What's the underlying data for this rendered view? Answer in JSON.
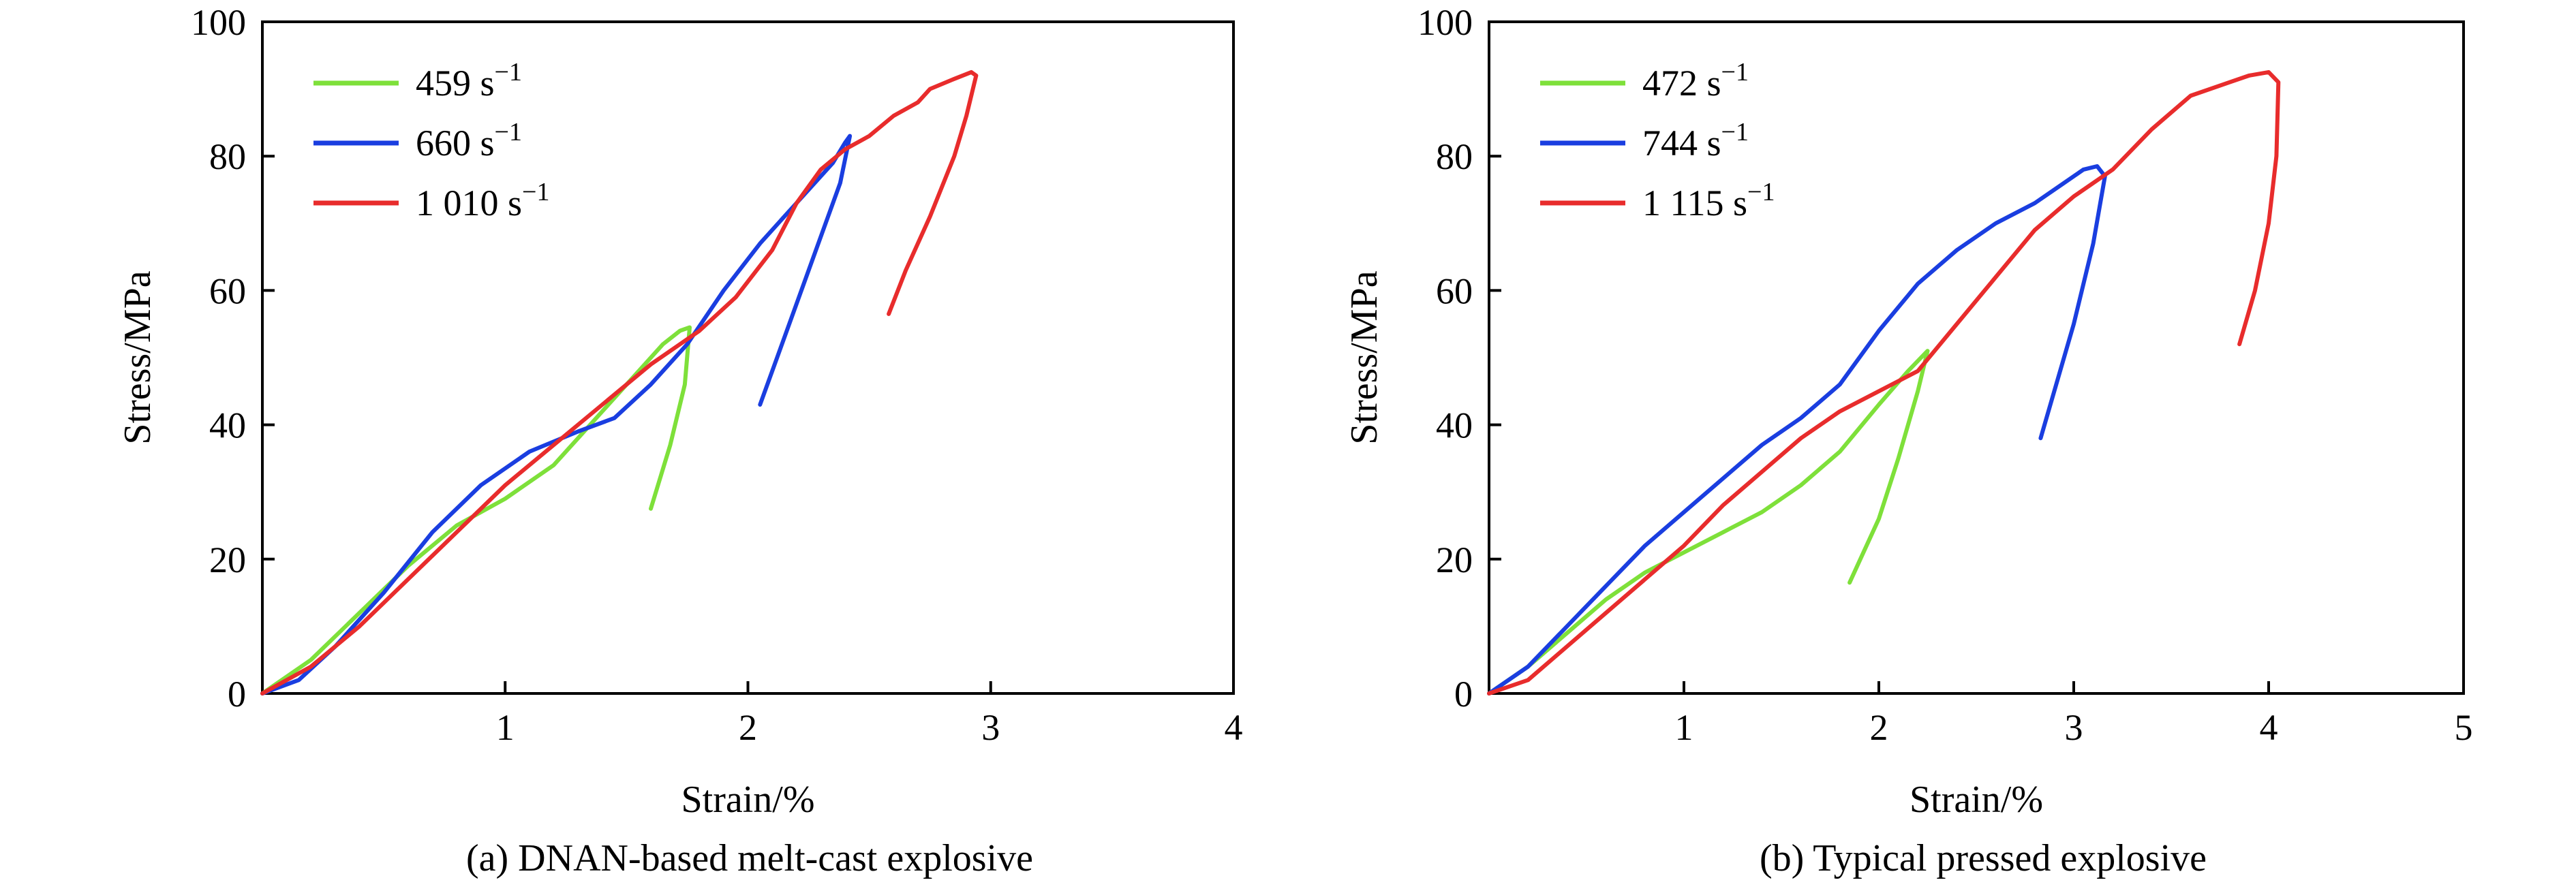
{
  "chart_data": [
    {
      "type": "line",
      "caption": "(a) DNAN-based melt-cast explosive",
      "xlabel": "Strain/%",
      "ylabel": "Stress/MPa",
      "xlim": [
        0,
        4
      ],
      "ylim": [
        0,
        100
      ],
      "xticks": [
        1,
        2,
        3,
        4
      ],
      "yticks": [
        0,
        20,
        40,
        60,
        80,
        100
      ],
      "grid": false,
      "legend_position": "top-left",
      "series": [
        {
          "name": "459 s",
          "name_sup": "−1",
          "color": "#7ee03a",
          "points": [
            [
              0,
              0
            ],
            [
              0.2,
              5
            ],
            [
              0.4,
              12
            ],
            [
              0.6,
              19
            ],
            [
              0.8,
              25
            ],
            [
              1.0,
              29
            ],
            [
              1.2,
              34
            ],
            [
              1.4,
              42
            ],
            [
              1.55,
              48
            ],
            [
              1.65,
              52
            ],
            [
              1.72,
              54
            ],
            [
              1.76,
              54.5
            ],
            [
              1.74,
              46
            ],
            [
              1.68,
              37
            ],
            [
              1.6,
              27.5
            ]
          ]
        },
        {
          "name": "660 s",
          "name_sup": "−1",
          "color": "#1a3ee0",
          "points": [
            [
              0,
              0
            ],
            [
              0.15,
              2
            ],
            [
              0.3,
              7
            ],
            [
              0.5,
              15
            ],
            [
              0.7,
              24
            ],
            [
              0.9,
              31
            ],
            [
              1.1,
              36
            ],
            [
              1.3,
              39
            ],
            [
              1.45,
              41
            ],
            [
              1.6,
              46
            ],
            [
              1.75,
              52
            ],
            [
              1.9,
              60
            ],
            [
              2.05,
              67
            ],
            [
              2.15,
              71
            ],
            [
              2.25,
              75
            ],
            [
              2.35,
              79
            ],
            [
              2.4,
              82
            ],
            [
              2.42,
              83
            ],
            [
              2.38,
              76
            ],
            [
              2.3,
              68
            ],
            [
              2.2,
              58
            ],
            [
              2.12,
              50
            ],
            [
              2.05,
              43
            ]
          ]
        },
        {
          "name": "1 010 s",
          "name_sup": "−1",
          "color": "#e82c2c",
          "points": [
            [
              0,
              0
            ],
            [
              0.2,
              4
            ],
            [
              0.4,
              10
            ],
            [
              0.6,
              17
            ],
            [
              0.8,
              24
            ],
            [
              1.0,
              31
            ],
            [
              1.2,
              37
            ],
            [
              1.4,
              43
            ],
            [
              1.6,
              49
            ],
            [
              1.8,
              54
            ],
            [
              1.95,
              59
            ],
            [
              2.1,
              66
            ],
            [
              2.2,
              73
            ],
            [
              2.3,
              78
            ],
            [
              2.4,
              81
            ],
            [
              2.5,
              83
            ],
            [
              2.6,
              86
            ],
            [
              2.7,
              88
            ],
            [
              2.75,
              90
            ],
            [
              2.85,
              91.5
            ],
            [
              2.92,
              92.5
            ],
            [
              2.94,
              92
            ],
            [
              2.9,
              86
            ],
            [
              2.85,
              80
            ],
            [
              2.75,
              71
            ],
            [
              2.65,
              63
            ],
            [
              2.58,
              56.5
            ]
          ]
        }
      ]
    },
    {
      "type": "line",
      "caption": "(b) Typical pressed explosive",
      "xlabel": "Strain/%",
      "ylabel": "Stress/MPa",
      "xlim": [
        0,
        5
      ],
      "ylim": [
        0,
        100
      ],
      "xticks": [
        1,
        2,
        3,
        4,
        5
      ],
      "yticks": [
        0,
        20,
        40,
        60,
        80,
        100
      ],
      "grid": false,
      "legend_position": "top-left",
      "series": [
        {
          "name": "472 s",
          "name_sup": "−1",
          "color": "#7ee03a",
          "points": [
            [
              0,
              0
            ],
            [
              0.2,
              4
            ],
            [
              0.4,
              9
            ],
            [
              0.6,
              14
            ],
            [
              0.8,
              18
            ],
            [
              1.0,
              21
            ],
            [
              1.2,
              24
            ],
            [
              1.4,
              27
            ],
            [
              1.6,
              31
            ],
            [
              1.8,
              36
            ],
            [
              2.0,
              43
            ],
            [
              2.15,
              48
            ],
            [
              2.25,
              51
            ],
            [
              2.2,
              45
            ],
            [
              2.1,
              35
            ],
            [
              2.0,
              26
            ],
            [
              1.85,
              16.5
            ]
          ]
        },
        {
          "name": "744 s",
          "name_sup": "−1",
          "color": "#1a3ee0",
          "points": [
            [
              0,
              0
            ],
            [
              0.2,
              4
            ],
            [
              0.4,
              10
            ],
            [
              0.6,
              16
            ],
            [
              0.8,
              22
            ],
            [
              1.0,
              27
            ],
            [
              1.2,
              32
            ],
            [
              1.4,
              37
            ],
            [
              1.6,
              41
            ],
            [
              1.8,
              46
            ],
            [
              2.0,
              54
            ],
            [
              2.2,
              61
            ],
            [
              2.4,
              66
            ],
            [
              2.6,
              70
            ],
            [
              2.8,
              73
            ],
            [
              2.95,
              76
            ],
            [
              3.05,
              78
            ],
            [
              3.12,
              78.5
            ],
            [
              3.16,
              77
            ],
            [
              3.1,
              67
            ],
            [
              3.0,
              55
            ],
            [
              2.9,
              45
            ],
            [
              2.83,
              38
            ]
          ]
        },
        {
          "name": "1 115 s",
          "name_sup": "−1",
          "color": "#e82c2c",
          "points": [
            [
              0,
              0
            ],
            [
              0.2,
              2
            ],
            [
              0.4,
              7
            ],
            [
              0.6,
              12
            ],
            [
              0.8,
              17
            ],
            [
              1.0,
              22
            ],
            [
              1.2,
              28
            ],
            [
              1.4,
              33
            ],
            [
              1.6,
              38
            ],
            [
              1.8,
              42
            ],
            [
              2.0,
              45
            ],
            [
              2.2,
              48
            ],
            [
              2.4,
              55
            ],
            [
              2.6,
              62
            ],
            [
              2.8,
              69
            ],
            [
              3.0,
              74
            ],
            [
              3.2,
              78
            ],
            [
              3.4,
              84
            ],
            [
              3.6,
              89
            ],
            [
              3.8,
              91
            ],
            [
              3.9,
              92
            ],
            [
              4.0,
              92.5
            ],
            [
              4.05,
              91
            ],
            [
              4.04,
              80
            ],
            [
              4.0,
              70
            ],
            [
              3.93,
              60
            ],
            [
              3.85,
              52
            ]
          ]
        }
      ]
    }
  ]
}
